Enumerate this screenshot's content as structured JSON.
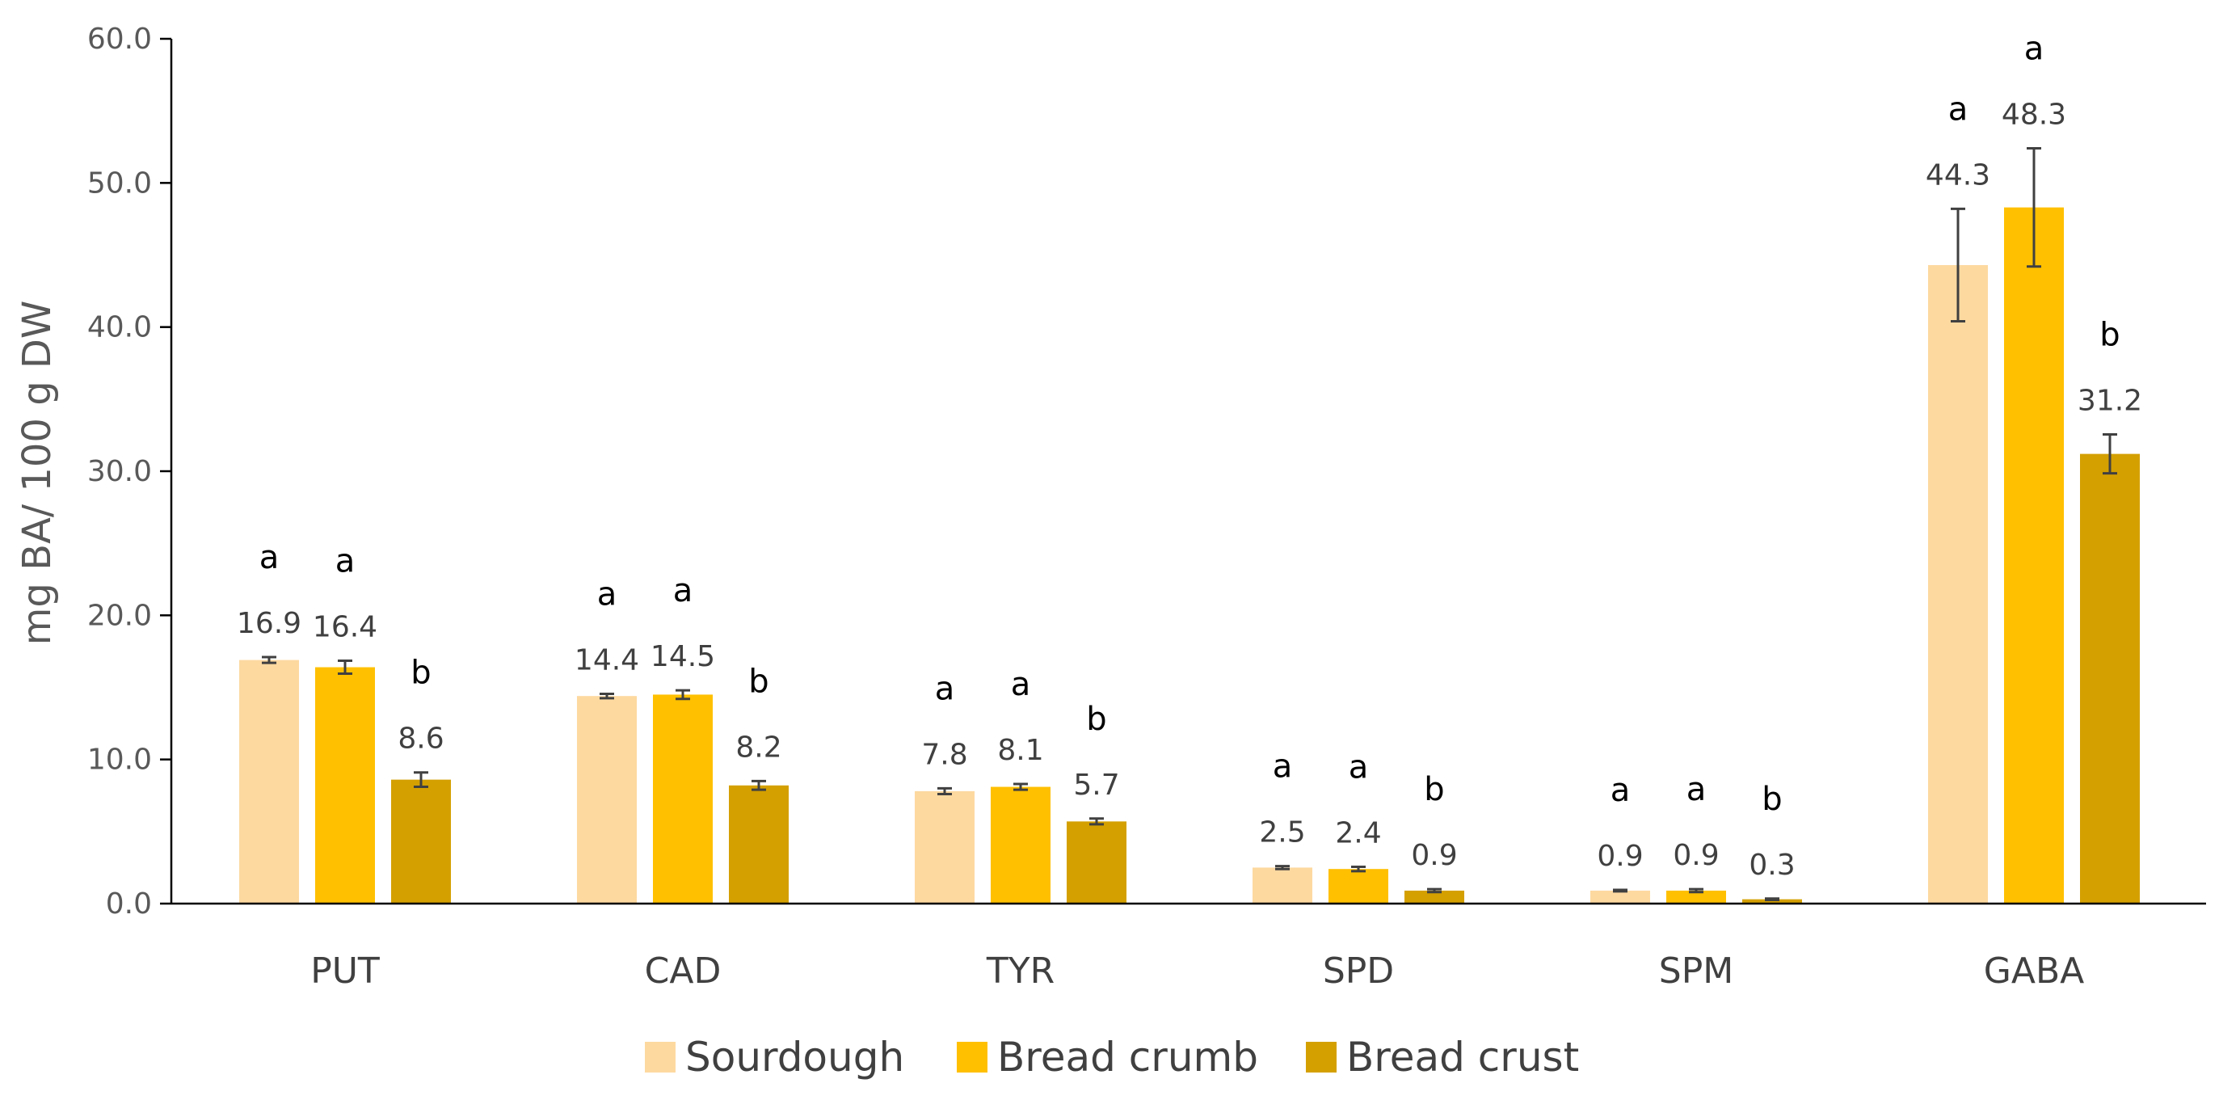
{
  "chart_data": {
    "type": "bar",
    "title": "",
    "xlabel": "",
    "ylabel": "mg BA/ 100 g DW",
    "ylim": [
      0,
      60
    ],
    "ytick_step": 10,
    "ytick_labels": [
      "0.0",
      "10.0",
      "20.0",
      "30.0",
      "40.0",
      "50.0",
      "60.0"
    ],
    "grid": false,
    "legend_position": "bottom-center",
    "categories": [
      "PUT",
      "CAD",
      "TYR",
      "SPD",
      "SPM",
      "GABA"
    ],
    "series": [
      {
        "name": "Sourdough",
        "color": "#FDD9A0",
        "values": [
          16.9,
          14.4,
          7.8,
          2.5,
          0.9,
          44.3
        ],
        "value_labels": [
          "16.9",
          "14.4",
          "7.8",
          "2.5",
          "0.9",
          "44.3"
        ],
        "errors": [
          0.2,
          0.15,
          0.2,
          0.1,
          0.05,
          3.9
        ],
        "significance": [
          "a",
          "a",
          "a",
          "a",
          "a",
          "a"
        ]
      },
      {
        "name": "Bread crumb",
        "color": "#FFC000",
        "values": [
          16.4,
          14.5,
          8.1,
          2.4,
          0.9,
          48.3
        ],
        "value_labels": [
          "16.4",
          "14.5",
          "8.1",
          "2.4",
          "0.9",
          "48.3"
        ],
        "errors": [
          0.45,
          0.3,
          0.2,
          0.15,
          0.1,
          4.1
        ],
        "significance": [
          "a",
          "a",
          "a",
          "a",
          "a",
          "a"
        ]
      },
      {
        "name": "Bread crust",
        "color": "#D4A000",
        "values": [
          8.6,
          8.2,
          5.7,
          0.9,
          0.3,
          31.2
        ],
        "value_labels": [
          "8.6",
          "8.2",
          "5.7",
          "0.9",
          "0.3",
          "31.2"
        ],
        "errors": [
          0.5,
          0.3,
          0.2,
          0.1,
          0.05,
          1.35
        ],
        "significance": [
          "b",
          "b",
          "b",
          "b",
          "b",
          "b"
        ]
      }
    ]
  },
  "colors": {
    "axis": "#000000",
    "error_bar": "#404040"
  }
}
